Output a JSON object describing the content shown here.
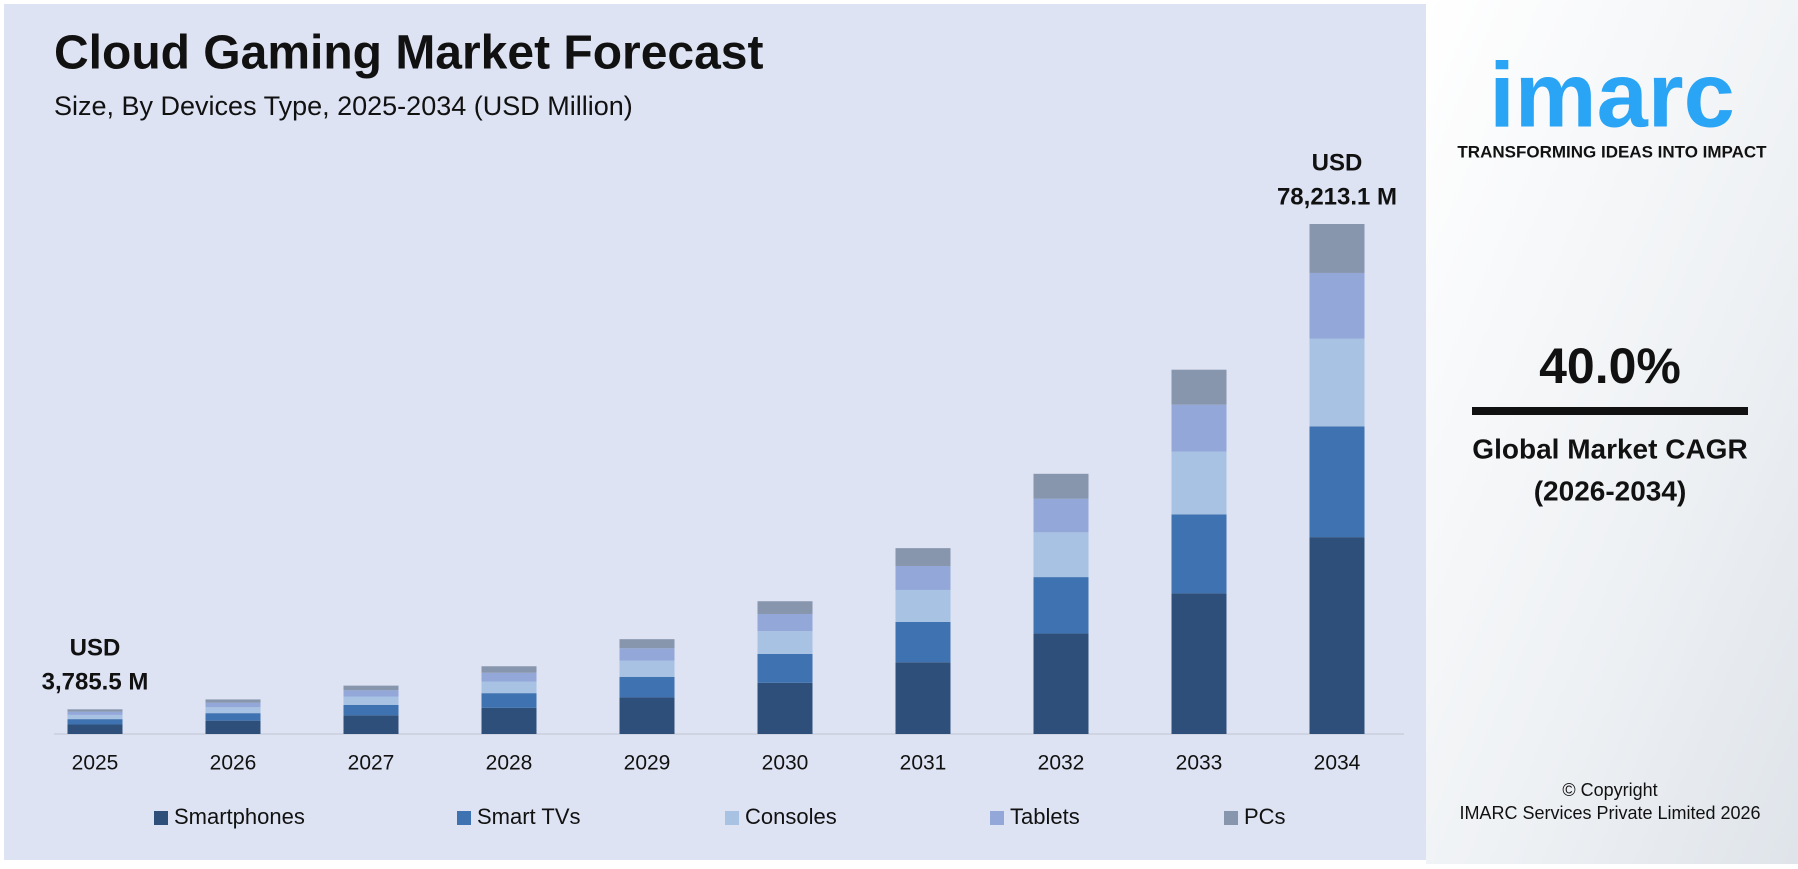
{
  "chart_data": {
    "type": "stacked-bar",
    "title": "Cloud Gaming Market Forecast",
    "subtitle": "Size, By Devices Type, 2025-2034 (USD Million)",
    "categories": [
      "2025",
      "2026",
      "2027",
      "2028",
      "2029",
      "2030",
      "2031",
      "2032",
      "2033",
      "2034"
    ],
    "series": [
      {
        "name": "Smartphones",
        "color": "#2e4f7a",
        "values": [
          1461,
          2046,
          2864,
          4009,
          5613,
          7859,
          11002,
          15403,
          21564,
          30190
        ]
      },
      {
        "name": "Smart TVs",
        "color": "#3f72b0",
        "values": [
          821,
          1150,
          1610,
          2254,
          3156,
          4418,
          6185,
          8659,
          12123,
          16972
        ]
      },
      {
        "name": "Consoles",
        "color": "#a7c2e3",
        "values": [
          651,
          912,
          1276,
          1787,
          2501,
          3502,
          4903,
          6863,
          9609,
          13453
        ]
      },
      {
        "name": "Tablets",
        "color": "#93a7d9",
        "values": [
          488,
          684,
          957,
          1340,
          1876,
          2626,
          3677,
          5148,
          7207,
          10089
        ]
      },
      {
        "name": "PCs",
        "color": "#8796ad",
        "values": [
          363,
          509,
          712,
          997,
          1396,
          1954,
          2736,
          3831,
          5363,
          7508
        ]
      }
    ],
    "annotations": [
      {
        "category": 0,
        "lines": [
          "USD",
          "3,785.5 M"
        ]
      },
      {
        "category": 9,
        "lines": [
          "USD",
          "78,213.1 M"
        ]
      }
    ]
  },
  "sidebar": {
    "logo": "imarc",
    "tagline": "TRANSFORMING IDEAS INTO IMPACT",
    "cagr": "40.0%",
    "cagr_label": [
      "Global Market CAGR",
      "(2026-2034)"
    ],
    "copyright": [
      "© Copyright",
      "IMARC Services Private Limited 2026"
    ]
  }
}
